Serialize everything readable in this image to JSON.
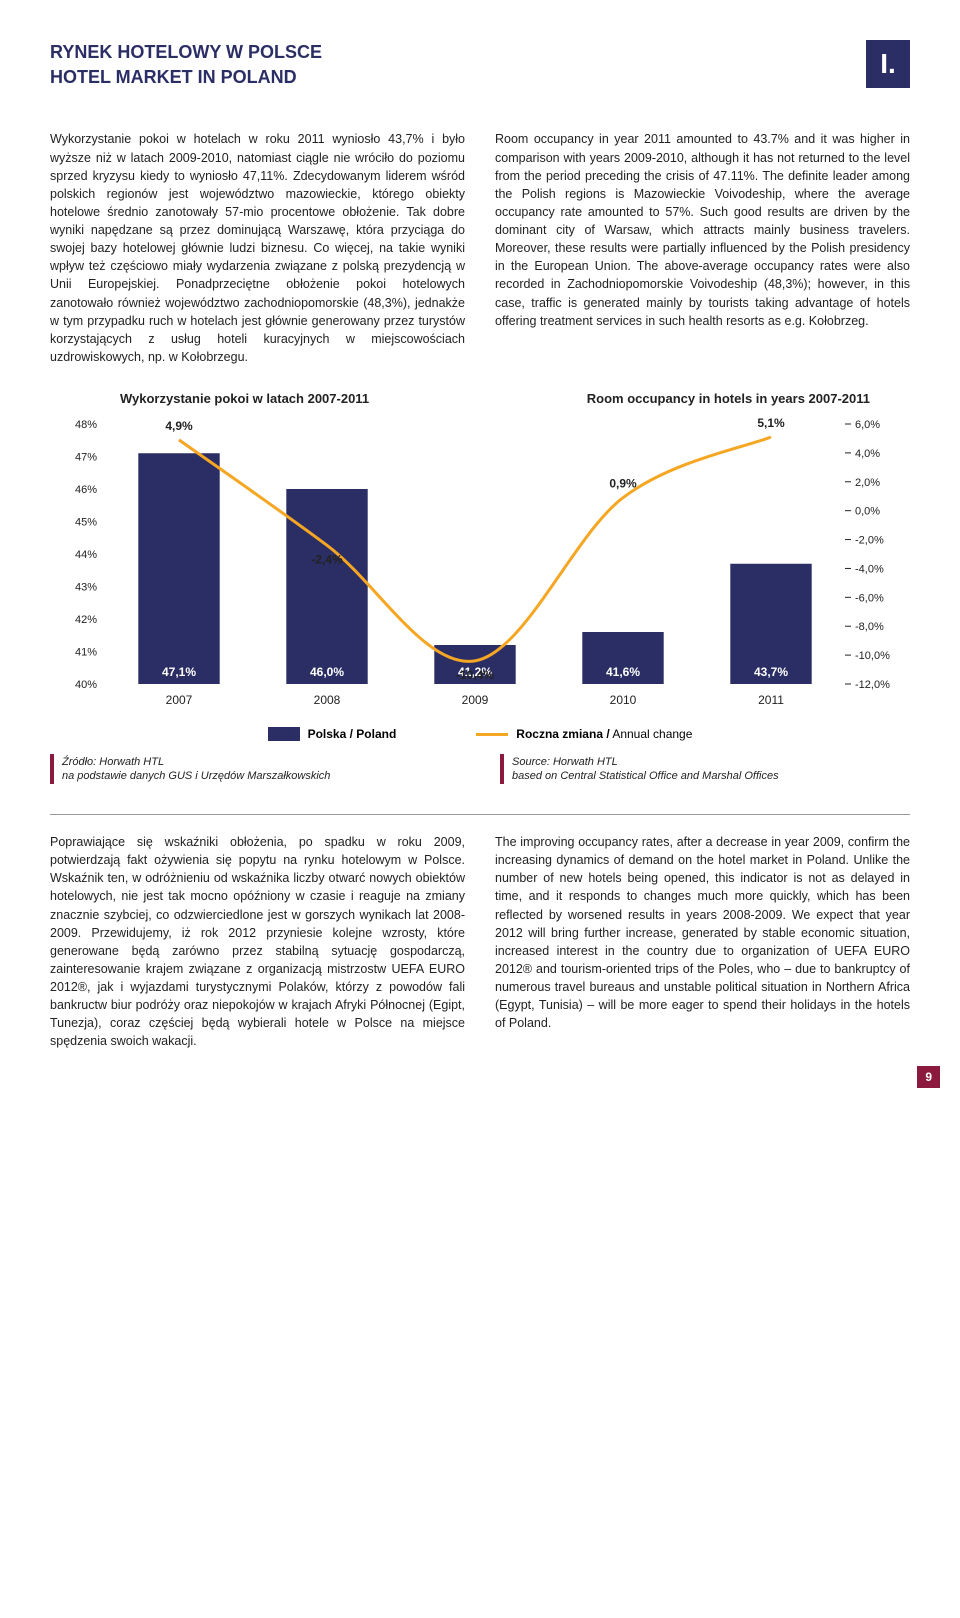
{
  "header": {
    "title_pl": "RYNEK HOTELOWY W POLSCE",
    "title_en": "HOTEL MARKET IN POLAND",
    "chapter": "I."
  },
  "body": {
    "para_pl_1": "Wykorzystanie pokoi w hotelach w roku 2011 wyniosło 43,7% i było wyższe niż w latach 2009-2010, natomiast ciągle nie wróciło do poziomu sprzed kryzysu kiedy to wyniosło 47,11%. Zdecydowanym liderem wśród polskich regionów jest województwo mazowieckie, którego obiekty hotelowe średnio zanotowały 57-mio procentowe obłożenie. Tak dobre wyniki napędzane są przez dominującą Warszawę, która przyciąga do swojej bazy hotelowej głównie ludzi biznesu. Co więcej, na takie wyniki wpływ też częściowo miały wydarzenia związane z polską prezydencją w Unii Europejskiej. Ponadprzeciętne obłożenie pokoi hotelowych zanotowało również województwo zachodniopomorskie (48,3%), jednakże w tym przypadku ruch w hotelach jest głównie generowany przez turystów korzystających z usług hoteli kuracyjnych w miejscowościach uzdrowiskowych, np. w Kołobrzegu.",
    "para_en_1": "Room occupancy in year 2011 amounted to 43.7% and it was higher in comparison with years 2009-2010, although it has not returned to the level from the period preceding the crisis of 47.11%. The definite leader among the Polish regions is Mazowieckie Voivodeship, where the average occupancy rate amounted to 57%. Such good results are driven by the dominant city of Warsaw, which attracts mainly business travelers. Moreover, these results were partially influenced by the Polish presidency in the European Union. The above-average occupancy rates were also recorded in Zachodniopomorskie Voivodeship (48,3%); however, in this case, traffic is generated mainly by tourists taking advantage of hotels offering treatment services in such health resorts as e.g. Kołobrzeg.",
    "para_pl_2": "Poprawiające się wskaźniki obłożenia, po spadku w roku 2009, potwierdzają fakt ożywienia się popytu na rynku hotelowym w Polsce. Wskaźnik ten, w odróżnieniu od wskaźnika liczby otwarć nowych obiektów hotelowych, nie jest tak mocno opóźniony w czasie i reaguje na zmiany znacznie szybciej, co odzwierciedlone jest w gorszych wynikach lat 2008-2009. Przewidujemy, iż rok 2012 przyniesie kolejne wzrosty, które generowane będą zarówno przez stabilną sytuację gospodarczą, zainteresowanie krajem związane z organizacją mistrzostw UEFA EURO 2012®, jak i wyjazdami turystycznymi Polaków, którzy z powodów fali bankructw biur podróży oraz niepokojów w krajach Afryki Północnej (Egipt, Tunezja), coraz częściej będą wybierali hotele w Polsce na miejsce spędzenia swoich wakacji.",
    "para_en_2": "The improving occupancy rates, after a decrease in year 2009, confirm the increasing dynamics of demand on the hotel market in Poland. Unlike the number of new hotels being opened, this indicator is not as delayed in time, and it responds to changes much more quickly, which has been reflected by worsened results in years 2008-2009. We expect that year 2012 will bring further increase, generated by stable economic situation, increased interest in the country due to organization of UEFA EURO 2012® and tourism-oriented trips of the Poles, who – due to bankruptcy of numerous travel bureaus and unstable political situation in Northern Africa (Egypt, Tunisia) – will be more eager to spend their holidays in the hotels of Poland.",
    "source_pl": "Źródło: Horwath HTL",
    "source_pl_sub": "na podstawie danych GUS i Urzędów Marszałkowskich",
    "source_en": "Source: Horwath HTL",
    "source_en_sub": "based on Central Statistical Office and Marshal Offices"
  },
  "chart": {
    "title_pl": "Wykorzystanie pokoi w latach 2007-2011",
    "title_en": "Room occupancy in hotels in years 2007-2011",
    "type": "bar+line",
    "categories": [
      "2007",
      "2008",
      "2009",
      "2010",
      "2011"
    ],
    "bar_values": [
      47.1,
      46.0,
      41.2,
      41.6,
      43.7
    ],
    "bar_labels": [
      "47,1%",
      "46,0%",
      "41,2%",
      "41,6%",
      "43,7%"
    ],
    "line_values": [
      4.9,
      -2.4,
      -10.4,
      0.9,
      5.1
    ],
    "line_labels": [
      "4,9%",
      "-2,4%",
      "-10,4%",
      "0,9%",
      "5,1%"
    ],
    "left_axis": {
      "min": 40,
      "max": 48,
      "step": 1,
      "ticks": [
        "40%",
        "41%",
        "42%",
        "43%",
        "44%",
        "45%",
        "46%",
        "47%",
        "48%"
      ]
    },
    "right_axis": {
      "min": -12,
      "max": 6,
      "step": 2,
      "ticks": [
        "-12,0%",
        "-10,0%",
        "-8,0%",
        "-6,0%",
        "-4,0%",
        "-2,0%",
        "0,0%",
        "2,0%",
        "4,0%",
        "6,0%"
      ]
    },
    "bar_color": "#2b2e64",
    "line_color": "#f5a623",
    "line_width": 3,
    "background": "#ffffff",
    "grid_color": "#cccccc",
    "legend_bar": "Polska / Poland",
    "legend_line_pl": "Roczna zmiana /",
    "legend_line_en": "Annual change"
  },
  "page_number": "9"
}
